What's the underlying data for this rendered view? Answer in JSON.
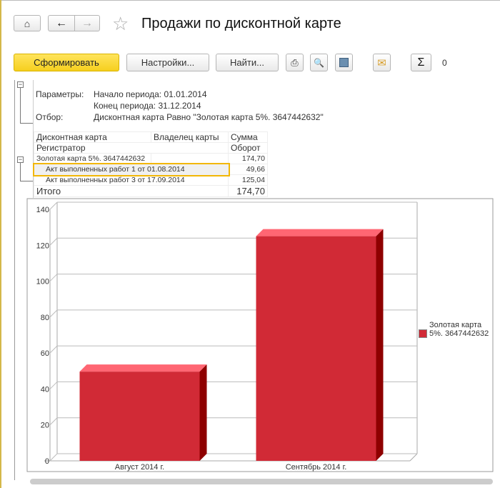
{
  "header": {
    "title": "Продажи по дисконтной карте",
    "icons": [
      "home-icon",
      "back-arrow-icon",
      "forward-arrow-icon",
      "star-icon"
    ]
  },
  "toolbar": {
    "generate": "Сформировать",
    "settings": "Настройки...",
    "find": "Найти...",
    "sum_value": "0",
    "icons": [
      "print-icon",
      "preview-icon",
      "save-icon",
      "mail-icon",
      "sigma-icon"
    ]
  },
  "params": {
    "label_params": "Параметры:",
    "start": "Начало периода: 01.01.2014",
    "end": "Конец периода: 31.12.2014",
    "label_filter": "Отбор:",
    "filter": "Дисконтная карта Равно \"Золотая карта 5%. 3647442632\""
  },
  "table": {
    "headers": [
      "Дисконтная карта",
      "Владелец карты",
      "Сумма",
      "Регистратор",
      "Оборот"
    ],
    "group": {
      "name": "Золотая карта 5%. 3647442632",
      "value": "174,70"
    },
    "rows": [
      {
        "name": "Акт выполненных работ 1 от 01.08.2014",
        "value": "49,66"
      },
      {
        "name": "Акт выполненных работ 3 от 17.09.2014",
        "value": "125,04"
      }
    ],
    "total": {
      "label": "Итого",
      "value": "174,70"
    }
  },
  "chart_data": {
    "type": "bar",
    "style": "3d",
    "categories": [
      "Август 2014 г.",
      "Сентябрь 2014 г."
    ],
    "series": [
      {
        "name": "Золотая карта 5%. 3647442632",
        "values": [
          49.66,
          125.04
        ],
        "color": "#d12a36"
      }
    ],
    "ylim": [
      0,
      140
    ],
    "yticks": [
      0,
      20,
      40,
      60,
      80,
      100,
      120,
      140
    ],
    "grid": true,
    "legend": "right"
  }
}
